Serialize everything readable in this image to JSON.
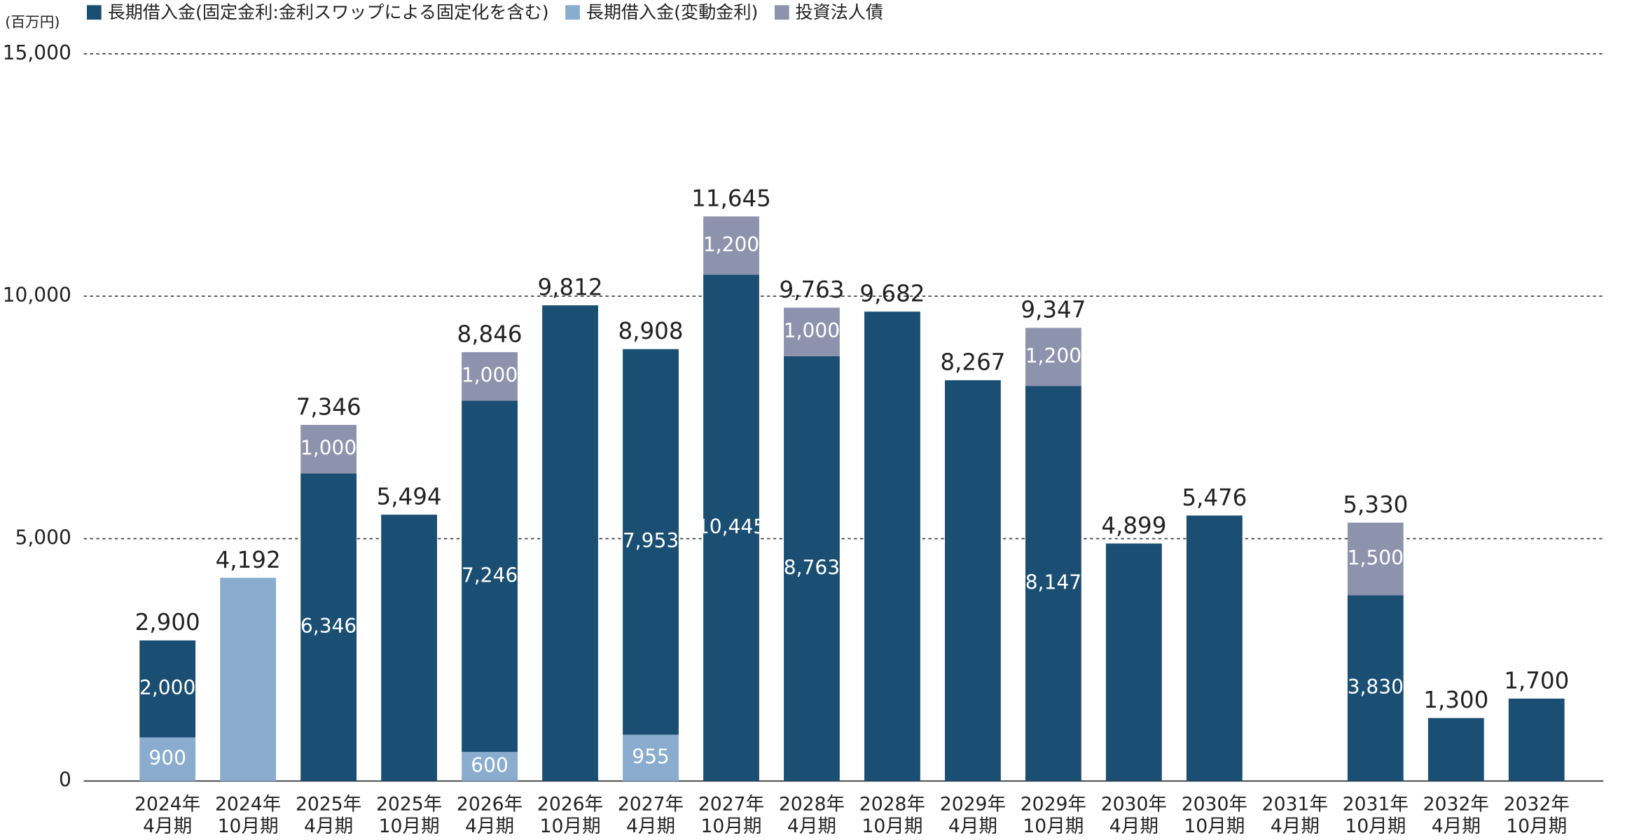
{
  "chart_data": {
    "type": "stacked-bar",
    "unit_label": "(百万円)",
    "categories": [
      [
        "2024年",
        "4月期"
      ],
      [
        "2024年",
        "10月期"
      ],
      [
        "2025年",
        "4月期"
      ],
      [
        "2025年",
        "10月期"
      ],
      [
        "2026年",
        "4月期"
      ],
      [
        "2026年",
        "10月期"
      ],
      [
        "2027年",
        "4月期"
      ],
      [
        "2027年",
        "10月期"
      ],
      [
        "2028年",
        "4月期"
      ],
      [
        "2028年",
        "10月期"
      ],
      [
        "2029年",
        "4月期"
      ],
      [
        "2029年",
        "10月期"
      ],
      [
        "2030年",
        "4月期"
      ],
      [
        "2030年",
        "10月期"
      ],
      [
        "2031年",
        "4月期"
      ],
      [
        "2031年",
        "10月期"
      ],
      [
        "2032年",
        "4月期"
      ],
      [
        "2032年",
        "10月期"
      ]
    ],
    "series": [
      {
        "name": "長期借入金(固定金利:金利スワップによる固定化を含む)",
        "color": "#1a4e72",
        "values": [
          2000,
          null,
          6346,
          5494,
          7246,
          9812,
          7953,
          10445,
          8763,
          9682,
          8267,
          8147,
          4899,
          5476,
          null,
          3830,
          1300,
          1700
        ],
        "value_labels": [
          "2,000",
          null,
          "6,346",
          null,
          "7,246",
          null,
          "7,953",
          "10,445",
          "8,763",
          null,
          null,
          "8,147",
          null,
          null,
          null,
          "3,830",
          null,
          null
        ]
      },
      {
        "name": "長期借入金(変動金利)",
        "color": "#8aacce",
        "values": [
          900,
          4192,
          null,
          null,
          600,
          null,
          955,
          null,
          null,
          null,
          null,
          null,
          null,
          null,
          null,
          null,
          null,
          null
        ],
        "value_labels": [
          "900",
          null,
          null,
          null,
          "600",
          null,
          "955",
          null,
          null,
          null,
          null,
          null,
          null,
          null,
          null,
          null,
          null,
          null
        ]
      },
      {
        "name": "投資法人債",
        "color": "#8e93ad",
        "values": [
          null,
          null,
          1000,
          null,
          1000,
          null,
          null,
          1200,
          1000,
          null,
          null,
          1200,
          null,
          null,
          null,
          1500,
          null,
          null
        ],
        "value_labels": [
          null,
          null,
          "1,000",
          null,
          "1,000",
          null,
          null,
          "1,200",
          "1,000",
          null,
          null,
          "1,200",
          null,
          null,
          null,
          "1,500",
          null,
          null
        ]
      }
    ],
    "totals": {
      "values": [
        2900,
        4192,
        7346,
        5494,
        8846,
        9812,
        8908,
        11645,
        9763,
        9682,
        8267,
        9347,
        4899,
        5476,
        null,
        5330,
        1300,
        1700
      ],
      "value_labels": [
        "2,900",
        "4,192",
        "7,346",
        "5,494",
        "8,846",
        "9,812",
        "8,908",
        "11,645",
        "9,763",
        "9,682",
        "8,267",
        "9,347",
        "4,899",
        "5,476",
        null,
        "5,330",
        "1,300",
        "1,700"
      ]
    },
    "ylim": [
      0,
      15000
    ],
    "yticks": [
      0,
      {
        "value": 5000,
        "label": "5,000"
      },
      {
        "value": 10000,
        "label": "10,000"
      },
      {
        "value": 15000,
        "label": "15,000"
      }
    ],
    "grid": true
  }
}
